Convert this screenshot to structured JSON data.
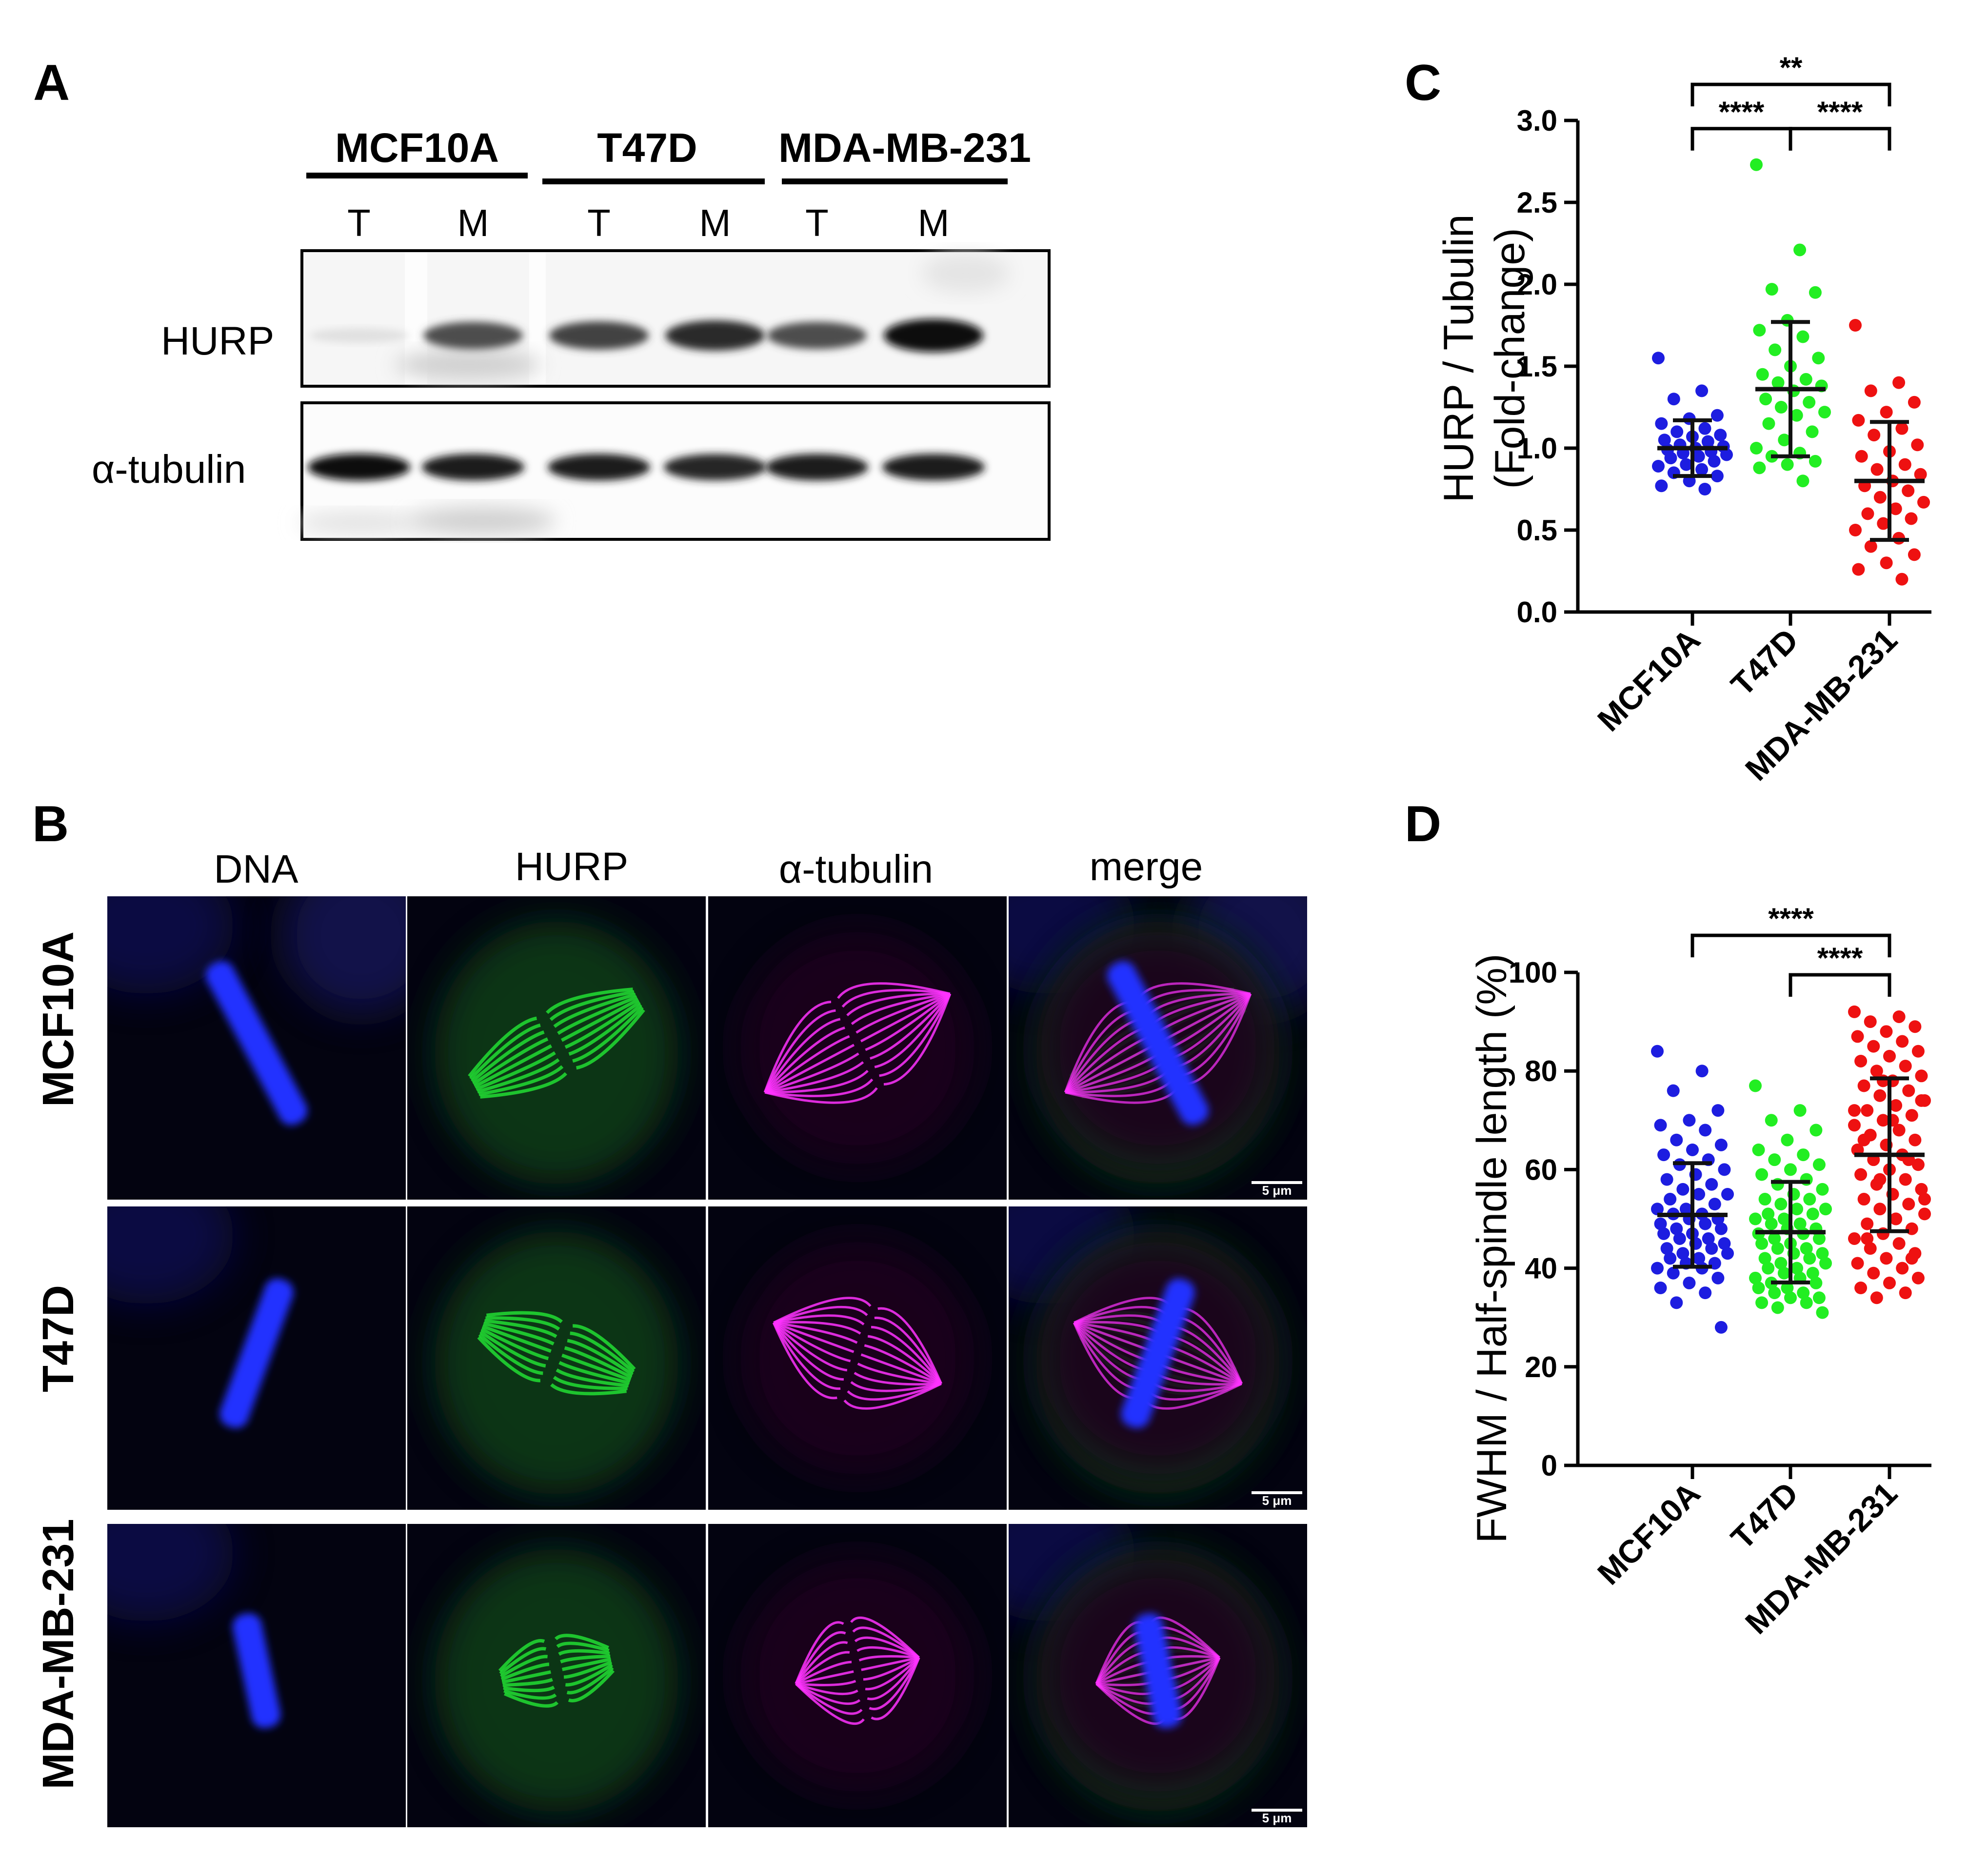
{
  "panels": {
    "A": {
      "letter": "A",
      "cell_lines": [
        "MCF10A",
        "T47D",
        "MDA-MB-231"
      ],
      "lanes": [
        "T",
        "M",
        "T",
        "M",
        "T",
        "M"
      ],
      "blots": [
        {
          "label": "HURP",
          "band_intensity": [
            0.05,
            0.7,
            0.75,
            0.85,
            0.7,
            1.0
          ]
        },
        {
          "label": "α-tubulin",
          "band_intensity": [
            0.95,
            0.9,
            0.9,
            0.85,
            0.9,
            0.9
          ]
        }
      ]
    },
    "B": {
      "letter": "B",
      "channels": [
        "DNA",
        "HURP",
        "α-tubulin",
        "merge"
      ],
      "rows": [
        "MCF10A",
        "T47D",
        "MDA-MB-231"
      ],
      "scale_bar": "5 μm",
      "colors": {
        "dna": "#2233ff",
        "hurp": "#22dd33",
        "tubulin": "#ff33ff"
      }
    },
    "C": {
      "letter": "C"
    },
    "D": {
      "letter": "D"
    }
  },
  "chart_data": [
    {
      "type": "scatter",
      "panel": "C",
      "categories": [
        "MCF10A",
        "T47D",
        "MDA-MB-231"
      ],
      "ylabel": "HURP / Tubulin",
      "ylabel2": "(Fold-change)",
      "ylim": [
        0,
        3.0
      ],
      "yticks": [
        "0.0",
        "0.5",
        "1.0",
        "1.5",
        "2.0",
        "2.5",
        "3.0"
      ],
      "colors": [
        "#1d1de0",
        "#22ee22",
        "#ee1111"
      ],
      "series": [
        {
          "mean": 1.0,
          "sd": 0.17,
          "points": [
            1.55,
            1.35,
            1.3,
            1.2,
            1.18,
            1.15,
            1.12,
            1.1,
            1.08,
            1.07,
            1.05,
            1.04,
            1.02,
            1.01,
            1.0,
            0.99,
            0.98,
            0.97,
            0.96,
            0.95,
            0.94,
            0.92,
            0.9,
            0.89,
            0.87,
            0.85,
            0.83,
            0.8,
            0.77,
            0.75
          ]
        },
        {
          "mean": 1.36,
          "sd": 0.41,
          "points": [
            2.73,
            2.21,
            1.97,
            1.95,
            1.78,
            1.72,
            1.68,
            1.6,
            1.55,
            1.5,
            1.45,
            1.42,
            1.4,
            1.38,
            1.35,
            1.3,
            1.28,
            1.25,
            1.22,
            1.2,
            1.15,
            1.1,
            1.05,
            1.0,
            0.97,
            0.95,
            0.92,
            0.9,
            0.88,
            0.8
          ]
        },
        {
          "mean": 0.8,
          "sd": 0.36,
          "points": [
            1.75,
            1.4,
            1.35,
            1.28,
            1.22,
            1.17,
            1.12,
            1.08,
            1.02,
            0.98,
            0.95,
            0.9,
            0.87,
            0.84,
            0.8,
            0.77,
            0.74,
            0.7,
            0.67,
            0.63,
            0.6,
            0.57,
            0.54,
            0.5,
            0.45,
            0.4,
            0.35,
            0.3,
            0.26,
            0.2
          ]
        }
      ],
      "comparisons": [
        {
          "from": 0,
          "to": 2,
          "label": "**",
          "y": 3.22
        },
        {
          "from": 0,
          "to": 1,
          "label": "****",
          "y": 2.95
        },
        {
          "from": 1,
          "to": 2,
          "label": "****",
          "y": 2.95
        }
      ]
    },
    {
      "type": "scatter",
      "panel": "D",
      "categories": [
        "MCF10A",
        "T47D",
        "MDA-MB-231"
      ],
      "ylabel": "FWHM / Half-spindle length (%)",
      "ylim": [
        0,
        100
      ],
      "yticks": [
        "0",
        "20",
        "40",
        "60",
        "80",
        "100"
      ],
      "colors": [
        "#1d1de0",
        "#22ee22",
        "#ee1111"
      ],
      "series": [
        {
          "mean": 50.8,
          "sd": 10.5,
          "points": [
            84,
            80,
            76,
            72,
            70,
            69,
            68,
            66,
            65,
            64,
            63,
            62,
            61,
            60,
            59,
            58,
            57,
            56,
            55,
            55,
            54,
            53,
            52,
            52,
            51,
            51,
            50,
            50,
            49,
            49,
            48,
            48,
            47,
            47,
            46,
            46,
            45,
            45,
            44,
            44,
            43,
            43,
            42,
            42,
            41,
            41,
            40,
            40,
            39,
            38,
            37,
            36,
            35,
            33,
            28
          ]
        },
        {
          "mean": 47.3,
          "sd": 10.2,
          "points": [
            77,
            72,
            70,
            68,
            66,
            64,
            63,
            62,
            61,
            60,
            59,
            58,
            57,
            56,
            55,
            54,
            54,
            53,
            52,
            52,
            51,
            51,
            50,
            50,
            49,
            49,
            48,
            48,
            47,
            47,
            46,
            46,
            45,
            45,
            44,
            44,
            43,
            43,
            42,
            42,
            41,
            41,
            40,
            40,
            39,
            39,
            38,
            38,
            37,
            37,
            36,
            36,
            35,
            35,
            34,
            34,
            33,
            33,
            32,
            31
          ]
        },
        {
          "mean": 63.0,
          "sd": 15.5,
          "points": [
            92,
            91,
            90,
            89,
            88,
            87,
            86,
            85,
            84,
            83,
            82,
            81,
            80,
            79,
            78,
            77,
            76,
            75,
            74,
            73,
            72,
            71,
            70,
            69,
            68,
            67,
            66,
            65,
            64,
            63,
            62,
            61,
            60,
            59,
            58,
            57,
            56,
            55,
            54,
            53,
            52,
            51,
            50,
            49,
            48,
            47,
            46,
            45,
            44,
            43,
            42,
            41,
            40,
            39,
            38,
            37,
            36,
            35,
            34,
            74,
            70,
            66,
            62,
            58,
            54,
            50,
            46,
            42,
            78,
            72
          ]
        }
      ],
      "comparisons": [
        {
          "from": 0,
          "to": 2,
          "label": "****",
          "y": 107.5
        },
        {
          "from": 1,
          "to": 2,
          "label": "****",
          "y": 99.5
        }
      ]
    }
  ]
}
